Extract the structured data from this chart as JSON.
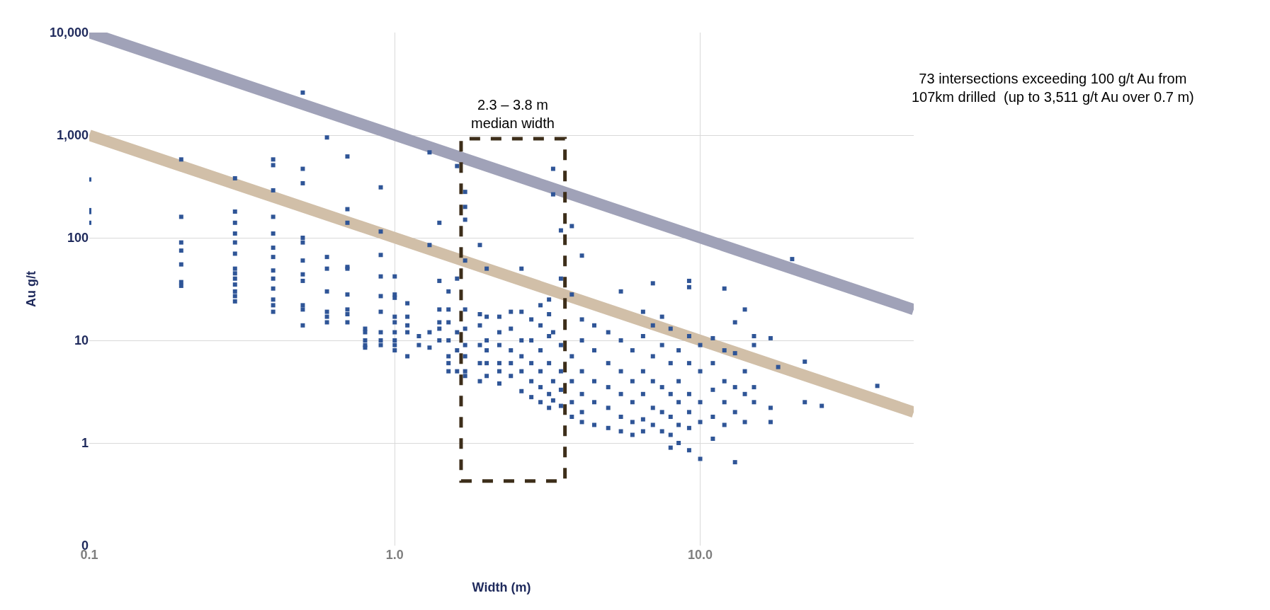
{
  "chart_data": {
    "type": "scatter",
    "xlabel": "Width (m)",
    "ylabel": "Au g/t",
    "log": "xy",
    "grid": true,
    "xlim": [
      0.1,
      50
    ],
    "xticks": [
      0.1,
      {
        "value": 1,
        "label": "1.0"
      },
      {
        "value": 10,
        "label": "10.0"
      }
    ],
    "ylim": [
      0.1,
      10000
    ],
    "yticks": [
      {
        "value": 0.1,
        "label": "0"
      },
      1,
      10,
      100,
      {
        "value": 1000,
        "label": "1,000"
      },
      {
        "value": 10000,
        "label": "10,000"
      }
    ],
    "annotations": [
      "73 intersections exceeding 100 g/t Au from\n107km drilled  (up to 3,511 g/t Au over 0.7 m)",
      "2.3 – 3.8 m\nmedian width"
    ],
    "series": [
      {
        "type": "line",
        "marker": "none",
        "color": "#a0a2b8",
        "x": [
          0.1,
          50
        ],
        "values": [
          10000,
          20
        ]
      },
      {
        "type": "line",
        "marker": "none",
        "color": "#d1bfa8",
        "x": [
          0.1,
          50
        ],
        "values": [
          1000,
          2
        ]
      },
      {
        "marker": "square",
        "color": "#2f5597",
        "x": [
          0.1,
          0.1,
          0.1,
          0.1,
          0.2,
          0.2,
          0.2,
          0.2,
          0.2,
          0.2,
          0.2,
          0.3,
          0.3,
          0.3,
          0.3,
          0.3,
          0.3,
          0.3,
          0.3,
          0.3,
          0.3,
          0.3,
          0.3,
          0.3,
          0.4,
          0.4,
          0.4,
          0.4,
          0.4,
          0.4,
          0.4,
          0.4,
          0.4,
          0.4,
          0.4,
          0.4,
          0.4,
          0.5,
          0.5,
          0.5,
          0.5,
          0.5,
          0.5,
          0.5,
          0.5,
          0.5,
          0.5,
          0.5,
          0.6,
          0.6,
          0.6,
          0.6,
          0.6,
          0.6,
          0.6,
          0.7,
          0.7,
          0.7,
          0.7,
          0.7,
          0.7,
          0.7,
          0.7,
          0.7,
          0.8,
          0.8,
          0.8,
          0.8,
          0.8,
          0.9,
          0.9,
          0.9,
          0.9,
          0.9,
          0.9,
          0.9,
          0.9,
          0.9,
          1.0,
          1.0,
          1.0,
          1.0,
          1.0,
          1.0,
          1.0,
          1.0,
          1.0,
          1.1,
          1.1,
          1.1,
          1.1,
          1.1,
          1.2,
          1.2,
          1.3,
          1.3,
          1.3,
          1.3,
          1.4,
          1.4,
          1.4,
          1.4,
          1.4,
          1.4,
          1.5,
          1.5,
          1.5,
          1.5,
          1.5,
          1.5,
          1.5,
          1.6,
          1.6,
          1.6,
          1.6,
          1.6,
          1.7,
          1.7,
          1.7,
          1.7,
          1.7,
          1.7,
          1.7,
          1.7,
          1.7,
          1.7,
          1.9,
          1.9,
          1.9,
          1.9,
          1.9,
          1.9,
          2.0,
          2.0,
          2.0,
          2.0,
          2.0,
          2.0,
          2.2,
          2.2,
          2.2,
          2.2,
          2.2,
          2.2,
          2.4,
          2.4,
          2.4,
          2.4,
          2.4,
          2.6,
          2.6,
          2.6,
          2.6,
          2.6,
          2.6,
          2.8,
          2.8,
          2.8,
          2.8,
          2.8,
          3.0,
          3.0,
          3.0,
          3.0,
          3.0,
          3.0,
          3.2,
          3.2,
          3.2,
          3.2,
          3.2,
          3.2,
          3.3,
          3.3,
          3.3,
          3.3,
          3.3,
          3.5,
          3.5,
          3.5,
          3.5,
          3.5,
          3.5,
          3.8,
          3.8,
          3.8,
          3.8,
          3.8,
          3.8,
          4.1,
          4.1,
          4.1,
          4.1,
          4.1,
          4.1,
          4.1,
          4.5,
          4.5,
          4.5,
          4.5,
          4.5,
          5.0,
          5.0,
          5.0,
          5.0,
          5.0,
          5.5,
          5.5,
          5.5,
          5.5,
          5.5,
          5.5,
          6.0,
          6.0,
          6.0,
          6.0,
          6.0,
          6.5,
          6.5,
          6.5,
          6.5,
          6.5,
          6.5,
          7.0,
          7.0,
          7.0,
          7.0,
          7.0,
          7.0,
          7.5,
          7.5,
          7.5,
          7.5,
          7.5,
          8.0,
          8.0,
          8.0,
          8.0,
          8.0,
          8.0,
          8.5,
          8.5,
          8.5,
          8.5,
          8.5,
          9.2,
          9.2,
          9.2,
          9.2,
          9.2,
          9.2,
          9.2,
          9.2,
          10,
          10,
          10,
          10,
          10,
          11,
          11,
          11,
          11,
          11,
          12,
          12,
          12,
          12,
          12,
          13,
          13,
          13,
          13,
          13,
          14,
          14,
          14,
          14,
          15,
          15,
          15,
          15,
          17,
          17,
          17,
          18,
          20,
          22,
          22,
          25,
          38
        ],
        "values": [
          370,
          186,
          178,
          140,
          580,
          160,
          90,
          75,
          55,
          37,
          34,
          380,
          180,
          140,
          110,
          90,
          70,
          50,
          45,
          40,
          35,
          30,
          27,
          24,
          580,
          510,
          290,
          160,
          110,
          80,
          65,
          48,
          40,
          32,
          25,
          22,
          19,
          2600,
          470,
          340,
          100,
          90,
          60,
          44,
          38,
          22,
          20,
          14,
          950,
          65,
          50,
          30,
          19,
          17,
          15,
          620,
          190,
          140,
          52,
          50,
          28,
          20,
          18,
          15,
          13,
          12,
          10,
          9,
          8.5,
          310,
          115,
          68,
          42,
          27,
          19,
          12,
          10,
          9,
          42,
          28,
          26,
          17,
          15,
          12,
          10,
          9,
          8,
          23,
          17,
          14,
          12,
          7,
          11,
          9,
          680,
          85,
          12,
          8.5,
          140,
          38,
          20,
          15,
          13,
          10,
          30,
          20,
          15,
          10,
          7,
          6,
          5,
          500,
          40,
          12,
          8,
          5,
          280,
          200,
          150,
          60,
          20,
          13,
          9,
          7,
          5,
          4.5,
          85,
          18,
          14,
          9,
          6,
          4,
          50,
          17,
          10,
          8,
          6,
          4.5,
          17,
          12,
          9,
          6,
          5,
          3.8,
          19,
          13,
          8,
          6,
          4.5,
          50,
          19,
          10,
          7,
          5,
          3.2,
          16,
          10,
          6,
          4,
          2.8,
          22,
          14,
          8,
          5,
          3.5,
          2.5,
          25,
          18,
          11,
          6,
          3,
          2.2,
          470,
          265,
          12,
          4,
          2.6,
          118,
          40,
          9,
          5,
          3.3,
          2.3,
          130,
          28,
          7,
          4,
          2.5,
          1.8,
          67,
          16,
          10,
          5,
          3,
          2,
          1.6,
          14,
          8,
          4,
          2.5,
          1.5,
          12,
          6,
          3.5,
          2.2,
          1.4,
          30,
          10,
          5,
          3,
          1.8,
          1.3,
          8,
          4,
          2.5,
          1.6,
          1.2,
          19,
          11,
          5,
          3,
          1.7,
          1.3,
          36,
          14,
          7,
          4,
          2.2,
          1.5,
          17,
          9,
          3.5,
          2,
          1.3,
          13,
          6,
          3,
          1.8,
          1.2,
          0.9,
          8,
          4,
          2.5,
          1.5,
          1.0,
          38,
          33,
          11,
          6,
          3,
          2,
          1.4,
          0.85,
          9,
          5,
          2.5,
          1.6,
          0.7,
          10.5,
          6,
          3.3,
          1.8,
          1.1,
          32,
          8,
          4,
          2.5,
          1.5,
          15,
          7.5,
          3.5,
          2,
          0.65,
          20,
          5,
          3,
          1.6,
          11,
          9,
          3.5,
          2.5,
          10.5,
          2.2,
          1.6,
          5.5,
          62,
          6.2,
          2.5,
          2.3,
          3.6
        ]
      }
    ]
  }
}
